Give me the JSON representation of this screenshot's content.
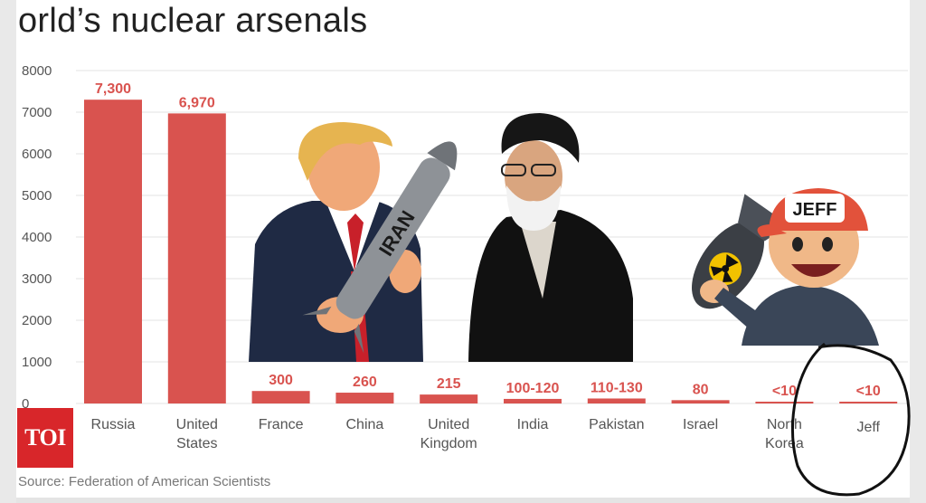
{
  "title": "orld’s nuclear arsenals",
  "source": "Source: Federation of American Scientists",
  "logo_text": "TOI",
  "colors": {
    "bar": "#d9534f",
    "label": "#d9534f",
    "grid": "#e3e3e3",
    "axis_text": "#555555"
  },
  "illustrations": {
    "missile_text": "IRAN",
    "cap_text": "JEFF",
    "icons": [
      "person-in-suit-icon",
      "missile-icon",
      "cleric-icon",
      "bomb-icon",
      "cartoon-boy-icon",
      "hand-drawn-circle-icon"
    ]
  },
  "chart_data": {
    "type": "bar",
    "categories": [
      "Russia",
      "United States",
      "France",
      "China",
      "United Kingdom",
      "India",
      "Pakistan",
      "Israel",
      "North Korea",
      "Jeff"
    ],
    "category_lines": [
      [
        "Russia"
      ],
      [
        "United",
        "States"
      ],
      [
        "France"
      ],
      [
        "China"
      ],
      [
        "United",
        "Kingdom"
      ],
      [
        "India"
      ],
      [
        "Pakistan"
      ],
      [
        "Israel"
      ],
      [
        "North",
        "Korea"
      ],
      [
        "Jeff"
      ]
    ],
    "values": [
      7300,
      6970,
      300,
      260,
      215,
      110,
      120,
      80,
      10,
      10
    ],
    "data_labels": [
      "7,300",
      "6,970",
      "300",
      "260",
      "215",
      "100-120",
      "110-130",
      "80",
      "<10",
      "<10"
    ],
    "yticks": [
      "0",
      "1000",
      "2000",
      "3000",
      "4000",
      "5000",
      "6000",
      "7000",
      "8000"
    ],
    "ylim": [
      0,
      8000
    ],
    "grid": true
  }
}
